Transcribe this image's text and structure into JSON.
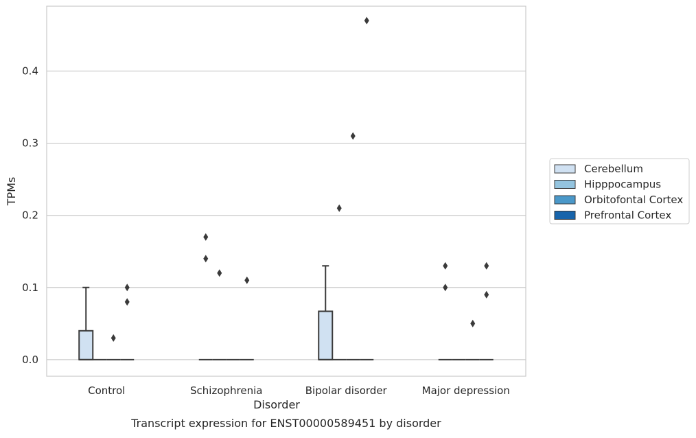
{
  "chart_data": {
    "type": "box",
    "ylabel": "TPMs",
    "xlabel": "Disorder",
    "caption": "Transcript expression for ENST00000589451 by disorder",
    "ylim": [
      -0.023,
      0.49
    ],
    "yticks": [
      0.0,
      0.1,
      0.2,
      0.3,
      0.4
    ],
    "ytick_labels": [
      "0.0",
      "0.1",
      "0.2",
      "0.3",
      "0.4"
    ],
    "grid": "horizontal",
    "legend_position": "right",
    "categories": [
      "Control",
      "Schizophrenia",
      "Bipolar disorder",
      "Major depression"
    ],
    "series": [
      {
        "name": "Cerebellum",
        "color": "#d0e1f2",
        "boxes": [
          {
            "q1": 0.0,
            "median": 0.0,
            "q3": 0.04,
            "whisker_low": 0.0,
            "whisker_high": 0.1,
            "outliers": []
          },
          {
            "q1": 0.0,
            "median": 0.0,
            "q3": 0.0,
            "whisker_low": 0.0,
            "whisker_high": 0.0,
            "outliers": [
              0.17,
              0.14
            ]
          },
          {
            "q1": 0.0,
            "median": 0.0,
            "q3": 0.067,
            "whisker_low": 0.0,
            "whisker_high": 0.13,
            "outliers": []
          },
          {
            "q1": 0.0,
            "median": 0.0,
            "q3": 0.0,
            "whisker_low": 0.0,
            "whisker_high": 0.0,
            "outliers": [
              0.13,
              0.1
            ]
          }
        ]
      },
      {
        "name": "Hipppocampus",
        "color": "#94c4df",
        "boxes": [
          {
            "q1": 0.0,
            "median": 0.0,
            "q3": 0.0,
            "whisker_low": 0.0,
            "whisker_high": 0.0,
            "outliers": []
          },
          {
            "q1": 0.0,
            "median": 0.0,
            "q3": 0.0,
            "whisker_low": 0.0,
            "whisker_high": 0.0,
            "outliers": [
              0.12
            ]
          },
          {
            "q1": 0.0,
            "median": 0.0,
            "q3": 0.0,
            "whisker_low": 0.0,
            "whisker_high": 0.0,
            "outliers": [
              0.21
            ]
          },
          {
            "q1": 0.0,
            "median": 0.0,
            "q3": 0.0,
            "whisker_low": 0.0,
            "whisker_high": 0.0,
            "outliers": []
          }
        ]
      },
      {
        "name": "Orbitofontal Cortex",
        "color": "#4a98c9",
        "boxes": [
          {
            "q1": 0.0,
            "median": 0.0,
            "q3": 0.0,
            "whisker_low": 0.0,
            "whisker_high": 0.0,
            "outliers": [
              0.03
            ]
          },
          {
            "q1": 0.0,
            "median": 0.0,
            "q3": 0.0,
            "whisker_low": 0.0,
            "whisker_high": 0.0,
            "outliers": []
          },
          {
            "q1": 0.0,
            "median": 0.0,
            "q3": 0.0,
            "whisker_low": 0.0,
            "whisker_high": 0.0,
            "outliers": [
              0.31
            ]
          },
          {
            "q1": 0.0,
            "median": 0.0,
            "q3": 0.0,
            "whisker_low": 0.0,
            "whisker_high": 0.0,
            "outliers": [
              0.05
            ]
          }
        ]
      },
      {
        "name": "Prefrontal Cortex",
        "color": "#1764ab",
        "boxes": [
          {
            "q1": 0.0,
            "median": 0.0,
            "q3": 0.0,
            "whisker_low": 0.0,
            "whisker_high": 0.0,
            "outliers": [
              0.1,
              0.08
            ]
          },
          {
            "q1": 0.0,
            "median": 0.0,
            "q3": 0.0,
            "whisker_low": 0.0,
            "whisker_high": 0.0,
            "outliers": [
              0.11
            ]
          },
          {
            "q1": 0.0,
            "median": 0.0,
            "q3": 0.0,
            "whisker_low": 0.0,
            "whisker_high": 0.0,
            "outliers": [
              0.47
            ]
          },
          {
            "q1": 0.0,
            "median": 0.0,
            "q3": 0.0,
            "whisker_low": 0.0,
            "whisker_high": 0.0,
            "outliers": [
              0.13,
              0.09
            ]
          }
        ]
      }
    ]
  }
}
